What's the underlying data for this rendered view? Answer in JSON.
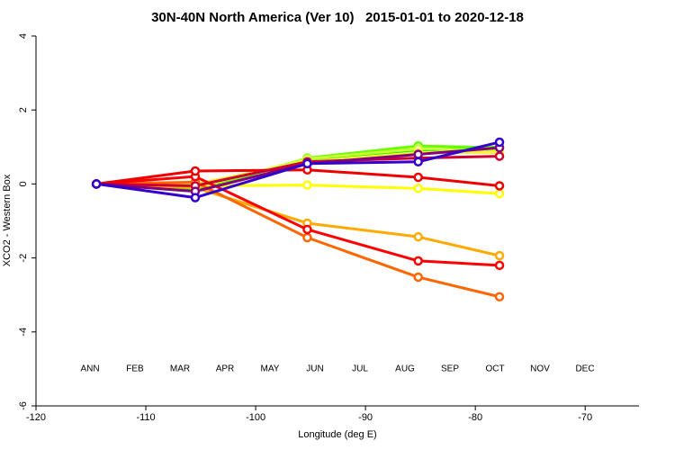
{
  "chart_data": {
    "type": "line",
    "title": "30N-40N North America (Ver 10)   2015-01-01 to 2020-12-18",
    "x_label": "Longitude (deg E)",
    "y_label": "XCO2 - Western Box",
    "x": [
      -114.5,
      -105.5,
      -95.3,
      -85.2,
      -77.8
    ],
    "series": [
      {
        "name": "ANN",
        "color": "#00ff00",
        "values": [
          0,
          -0.15,
          0.65,
          0.9,
          1.0
        ]
      },
      {
        "name": "FEB",
        "color": "#66ff00",
        "values": [
          0,
          -0.2,
          0.7,
          1.03,
          0.98
        ]
      },
      {
        "name": "MAR",
        "color": "#ccff33",
        "values": [
          0,
          -0.1,
          0.68,
          0.95,
          0.9
        ]
      },
      {
        "name": "APR",
        "color": "#ffff00",
        "values": [
          0,
          -0.05,
          -0.03,
          -0.12,
          -0.26
        ]
      },
      {
        "name": "MAY",
        "color": "#ffee33",
        "values": [
          0,
          0,
          0.6,
          0.85,
          0.85
        ]
      },
      {
        "name": "JUN",
        "color": "#ffaa00",
        "values": [
          0,
          -0.1,
          -1.06,
          -1.43,
          -1.94
        ]
      },
      {
        "name": "JUL",
        "color": "#ff6600",
        "values": [
          0,
          0.05,
          -1.45,
          -2.52,
          -3.05
        ]
      },
      {
        "name": "AUG",
        "color": "#ff0000",
        "values": [
          0,
          0.2,
          -1.23,
          -2.08,
          -2.2
        ]
      },
      {
        "name": "SEP",
        "color": "#ee0000",
        "values": [
          0,
          0.35,
          0.38,
          0.18,
          -0.05
        ]
      },
      {
        "name": "OCT",
        "color": "#cc0033",
        "values": [
          0,
          -0.05,
          0.6,
          0.7,
          0.75
        ]
      },
      {
        "name": "NOV",
        "color": "#800080",
        "values": [
          0,
          -0.2,
          0.55,
          0.8,
          0.98
        ]
      },
      {
        "name": "DEC",
        "color": "#3300cc",
        "values": [
          0,
          -0.37,
          0.55,
          0.6,
          1.13
        ]
      }
    ],
    "xlim": [
      -120,
      -65.1
    ],
    "xticks": [
      -120,
      -110,
      -100,
      -90,
      -80,
      -70
    ],
    "ylim": [
      -6,
      4
    ],
    "yticks": [
      -6,
      -4,
      -2,
      0,
      2,
      4
    ],
    "grid": false
  }
}
